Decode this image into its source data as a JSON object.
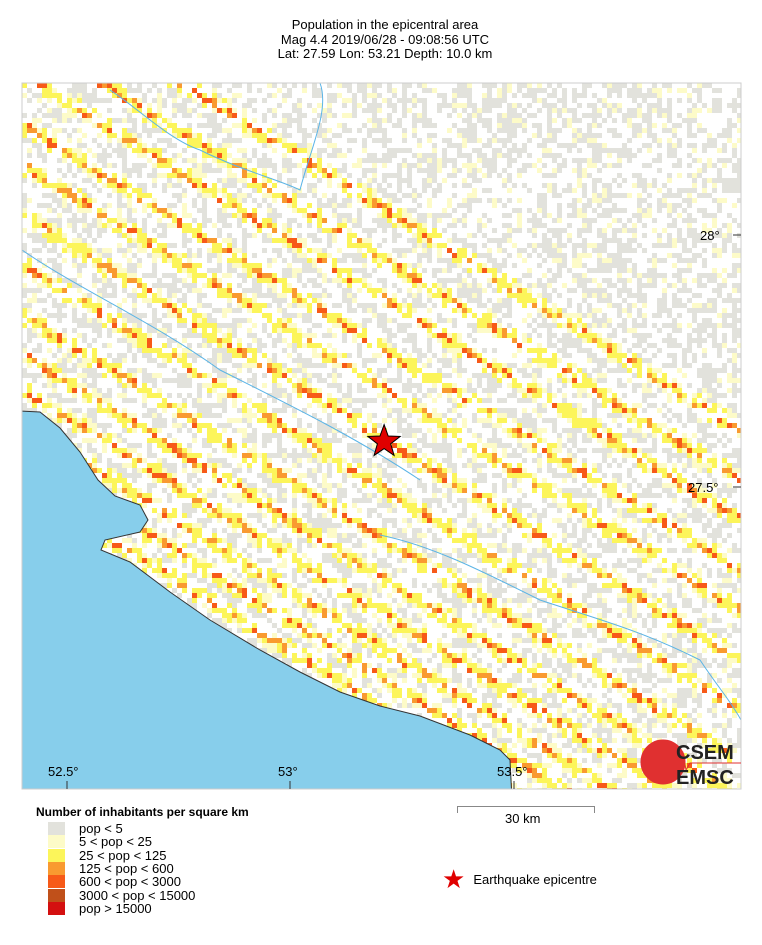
{
  "header": {
    "title": "Population in the epicentral area",
    "line2": "Mag 4.4  2019/06/28 - 09:08:56 UTC",
    "line3": "Lat: 27.59    Lon:  53.21    Depth:  10.0 km"
  },
  "map": {
    "sea_color": "#87ceeb",
    "lat_labels": [
      "28°",
      "27.5°"
    ],
    "lon_labels": [
      "52.5°",
      "53°",
      "53.5°"
    ],
    "epicentre": {
      "lat": 27.59,
      "lon": 53.21,
      "color": "#e00000"
    }
  },
  "legend": {
    "title": "Number of inhabitants per square km",
    "items": [
      {
        "label": "pop < 5",
        "color": "#e2e2dc"
      },
      {
        "label": "5 < pop < 25",
        "color": "#fdfbc8"
      },
      {
        "label": "25 < pop < 125",
        "color": "#fcf55a"
      },
      {
        "label": "125 < pop < 600",
        "color": "#f99a30"
      },
      {
        "label": "600 < pop < 3000",
        "color": "#f75a18"
      },
      {
        "label": "3000 < pop < 15000",
        "color": "#c0501a"
      },
      {
        "label": "pop > 15000",
        "color": "#d41010"
      }
    ]
  },
  "scale": {
    "label": "30 km"
  },
  "epicentre_legend": {
    "label": "Earthquake epicentre"
  },
  "logo": {
    "top": "CSEM",
    "bottom": "EMSC"
  }
}
